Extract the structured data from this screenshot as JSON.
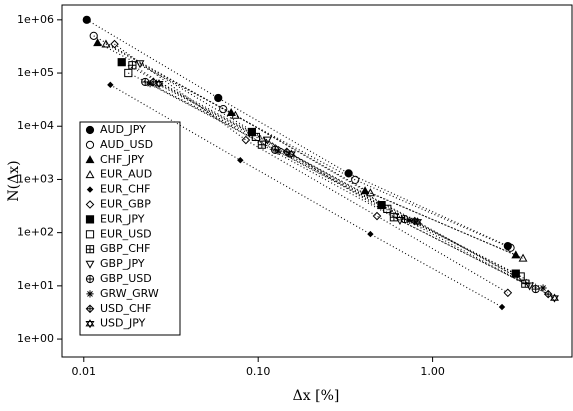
{
  "chart_data": {
    "type": "scatter",
    "x_label": "Δx [%]",
    "y_label": "N(Δx)",
    "log_x": true,
    "log_y": true,
    "xlim": [
      0.0075,
      6.3
    ],
    "ylim": [
      0.46,
      1900000
    ],
    "xticks": [
      0.01,
      {
        "value": 0.1,
        "label": "0.10"
      },
      {
        "value": 1,
        "label": "1.00"
      }
    ],
    "yticks": [
      {
        "value": 1,
        "label": "1e+00"
      },
      {
        "value": 10,
        "label": "1e+01"
      },
      {
        "value": 100,
        "label": "1e+02"
      },
      {
        "value": 1000,
        "label": "1e+03"
      },
      {
        "value": 10000,
        "label": "1e+04"
      },
      {
        "value": 100000,
        "label": "1e+05"
      },
      {
        "value": 1000000,
        "label": "1e+06"
      }
    ],
    "legend": "left",
    "series": [
      {
        "name": "AUD_JPY",
        "color": "#000000",
        "marker": "circle",
        "x": [
          0.0104,
          0.059,
          0.33,
          2.7
        ],
        "values": [
          1000000,
          34000,
          1300,
          56
        ]
      },
      {
        "name": "AUD_USD",
        "color": "#000000",
        "marker": "circle-open",
        "x": [
          0.0114,
          0.063,
          0.36,
          2.8
        ],
        "values": [
          500000,
          21000,
          980,
          52
        ]
      },
      {
        "name": "CHF_JPY",
        "color": "#000000",
        "marker": "triangle",
        "x": [
          0.012,
          0.07,
          0.41,
          3.0
        ],
        "values": [
          370000,
          18000,
          610,
          38
        ]
      },
      {
        "name": "EUR_AUD",
        "color": "#000000",
        "marker": "triangle-open",
        "x": [
          0.0134,
          0.074,
          0.44,
          3.3
        ],
        "values": [
          350000,
          16000,
          560,
          33
        ]
      },
      {
        "name": "EUR_CHF",
        "color": "#000000",
        "marker": "diamond-small",
        "x": [
          0.0142,
          0.079,
          0.44,
          2.5
        ],
        "values": [
          60000,
          2300,
          94,
          4
        ]
      },
      {
        "name": "EUR_GBP",
        "color": "#000000",
        "marker": "diamond-open",
        "x": [
          0.015,
          0.085,
          0.48,
          2.7
        ],
        "values": [
          350000,
          5500,
          205,
          7.4
        ]
      },
      {
        "name": "EUR_JPY",
        "color": "#000000",
        "marker": "square",
        "x": [
          0.0165,
          0.092,
          0.51,
          3.0
        ],
        "values": [
          160000,
          7800,
          330,
          17
        ]
      },
      {
        "name": "EUR_USD",
        "color": "#000000",
        "marker": "square-open",
        "x": [
          0.018,
          0.097,
          0.55,
          3.2
        ],
        "values": [
          100000,
          6300,
          280,
          15
        ]
      },
      {
        "name": "GBP_CHF",
        "color": "#000000",
        "marker": "square-plus",
        "x": [
          0.019,
          0.105,
          0.6,
          3.4
        ],
        "values": [
          140000,
          4500,
          195,
          11
        ]
      },
      {
        "name": "GBP_JPY",
        "color": "#000000",
        "marker": "triangle-down-open",
        "x": [
          0.021,
          0.113,
          0.65,
          3.6
        ],
        "values": [
          150000,
          5500,
          170,
          10
        ]
      },
      {
        "name": "GBP_USD",
        "color": "#000000",
        "marker": "circle-plus",
        "x": [
          0.0225,
          0.125,
          0.69,
          3.9
        ],
        "values": [
          68000,
          3600,
          180,
          8.7
        ]
      },
      {
        "name": "GRW_GRW",
        "color": "#000000",
        "marker": "asterisk",
        "x": [
          0.024,
          0.13,
          0.74,
          4.3
        ],
        "values": [
          63000,
          3400,
          170,
          9.1
        ]
      },
      {
        "name": "USD_CHF",
        "color": "#000000",
        "marker": "diamond-plus",
        "x": [
          0.025,
          0.146,
          0.79,
          4.6
        ],
        "values": [
          68000,
          3300,
          165,
          7
        ]
      },
      {
        "name": "USD_JPY",
        "color": "#000000",
        "marker": "star-david",
        "x": [
          0.027,
          0.155,
          0.82,
          5.0
        ],
        "values": [
          63000,
          3000,
          160,
          5.9
        ]
      }
    ]
  }
}
